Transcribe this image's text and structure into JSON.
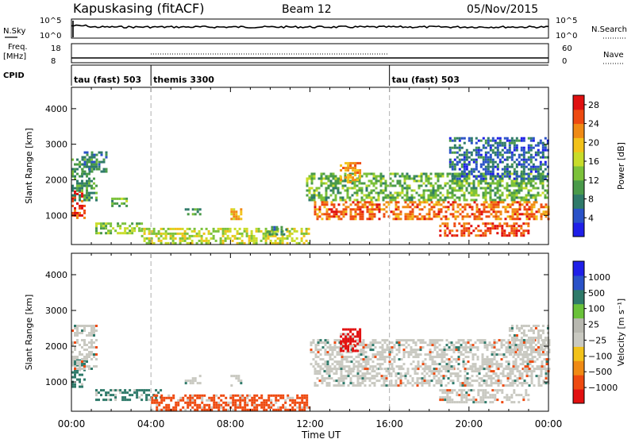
{
  "header": {
    "station": "Kapuskasing (fitACF)",
    "beam": "Beam 12",
    "date": "05/Nov/2015"
  },
  "noise_panel": {
    "left_label": "N.Sky",
    "left_ticks": [
      "10^5",
      "10^0"
    ],
    "right_ticks": [
      "10^5",
      "10^0"
    ],
    "right_label": "N.Search"
  },
  "freq_panel": {
    "left_label_1": "Freq.",
    "left_label_2": "[MHz]",
    "left_ticks": [
      "18",
      "8"
    ],
    "right_ticks": [
      "60",
      "0"
    ],
    "right_label": "Nave"
  },
  "cpid": {
    "label": "CPID",
    "segments": [
      {
        "name": "tau (fast) 503",
        "start": 0,
        "end": 4
      },
      {
        "name": "themis 3300",
        "start": 4,
        "end": 16
      },
      {
        "name": "tau (fast) 503",
        "start": 16,
        "end": 24
      }
    ]
  },
  "colors": {
    "power_scale": [
      "#1f1fe8",
      "#2a52c8",
      "#2f7a6a",
      "#4a9a4a",
      "#7cc23a",
      "#c8dc2a",
      "#f2c21a",
      "#f08a14",
      "#ee4a10",
      "#e01010"
    ],
    "velocity_scale": [
      "#e21010",
      "#ee4a10",
      "#f08a14",
      "#f2c21a",
      "#c9c9c1",
      "#b8b8b0",
      "#6ac23a",
      "#2f7a6a",
      "#2a52c8",
      "#1f1fe8"
    ],
    "velocity_ground": "#c9c9c1"
  },
  "chart_data": [
    {
      "type": "heatmap",
      "panel": "power",
      "ylabel": "Slant Range [km]",
      "xlim": [
        0,
        24
      ],
      "ylim": [
        180,
        4600
      ],
      "yticks": [
        "1000",
        "2000",
        "3000",
        "4000"
      ],
      "colorbar": {
        "label": "Power [dB]",
        "range": [
          0,
          30
        ],
        "ticks": [
          "4",
          "8",
          "12",
          "16",
          "20",
          "24",
          "28"
        ]
      },
      "echo_regions": [
        {
          "t0": 0.0,
          "t1": 0.6,
          "r0": 900,
          "r1": 1700,
          "value": 26
        },
        {
          "t0": 0.0,
          "t1": 1.2,
          "r0": 1400,
          "r1": 2600,
          "value": 10
        },
        {
          "t0": 0.5,
          "t1": 1.8,
          "r0": 2200,
          "r1": 2800,
          "value": 8
        },
        {
          "t0": 2.0,
          "t1": 2.8,
          "r0": 1250,
          "r1": 1500,
          "value": 12
        },
        {
          "t0": 1.2,
          "t1": 3.5,
          "r0": 500,
          "r1": 800,
          "value": 14
        },
        {
          "t0": 3.5,
          "t1": 12.0,
          "r0": 200,
          "r1": 650,
          "value": 16
        },
        {
          "t0": 5.7,
          "t1": 6.5,
          "r0": 1000,
          "r1": 1200,
          "value": 10
        },
        {
          "t0": 8.0,
          "t1": 8.5,
          "r0": 900,
          "r1": 1200,
          "value": 20
        },
        {
          "t0": 9.8,
          "t1": 10.8,
          "r0": 450,
          "r1": 700,
          "value": 8
        },
        {
          "t0": 11.8,
          "t1": 24.0,
          "r0": 1400,
          "r1": 2200,
          "value": 12
        },
        {
          "t0": 12.2,
          "t1": 24.0,
          "r0": 900,
          "r1": 1400,
          "value": 24
        },
        {
          "t0": 13.5,
          "t1": 14.5,
          "r0": 1900,
          "r1": 2500,
          "value": 22
        },
        {
          "t0": 18.5,
          "t1": 23.0,
          "r0": 450,
          "r1": 800,
          "value": 26
        },
        {
          "t0": 19.0,
          "t1": 24.0,
          "r0": 2000,
          "r1": 3200,
          "value": 6
        }
      ]
    },
    {
      "type": "heatmap",
      "panel": "velocity",
      "ylabel": "Slant Range [km]",
      "xlabel": "Time UT",
      "xlim": [
        0,
        24
      ],
      "ylim": [
        180,
        4600
      ],
      "yticks": [
        "1000",
        "2000",
        "3000",
        "4000"
      ],
      "xticks": [
        "00:00",
        "04:00",
        "08:00",
        "12:00",
        "16:00",
        "20:00",
        "00:00"
      ],
      "colorbar": {
        "label": "Velocity [m s⁻¹]",
        "ticks": [
          "1000",
          "500",
          "100",
          "25",
          "−25",
          "−100",
          "−500",
          "−1000"
        ]
      },
      "echo_regions": [
        {
          "t0": 0.0,
          "t1": 0.6,
          "r0": 900,
          "r1": 1700,
          "value": 100
        },
        {
          "t0": 0.0,
          "t1": 1.2,
          "r0": 1400,
          "r1": 2600,
          "value": 0
        },
        {
          "t0": 1.2,
          "t1": 4.5,
          "r0": 500,
          "r1": 800,
          "value": 100
        },
        {
          "t0": 4.0,
          "t1": 12.0,
          "r0": 200,
          "r1": 650,
          "value": -100
        },
        {
          "t0": 5.7,
          "t1": 6.5,
          "r0": 1000,
          "r1": 1200,
          "value": 0
        },
        {
          "t0": 8.0,
          "t1": 8.5,
          "r0": 900,
          "r1": 1200,
          "value": 0
        },
        {
          "t0": 12.0,
          "t1": 24.0,
          "r0": 1400,
          "r1": 2200,
          "value": 0
        },
        {
          "t0": 12.2,
          "t1": 24.0,
          "r0": 900,
          "r1": 1400,
          "value": 0
        },
        {
          "t0": 13.5,
          "t1": 14.5,
          "r0": 1900,
          "r1": 2500,
          "value": -500
        },
        {
          "t0": 18.5,
          "t1": 23.0,
          "r0": 450,
          "r1": 800,
          "value": 0
        },
        {
          "t0": 22.0,
          "t1": 24.0,
          "r0": 1800,
          "r1": 2600,
          "value": 0
        }
      ]
    }
  ]
}
